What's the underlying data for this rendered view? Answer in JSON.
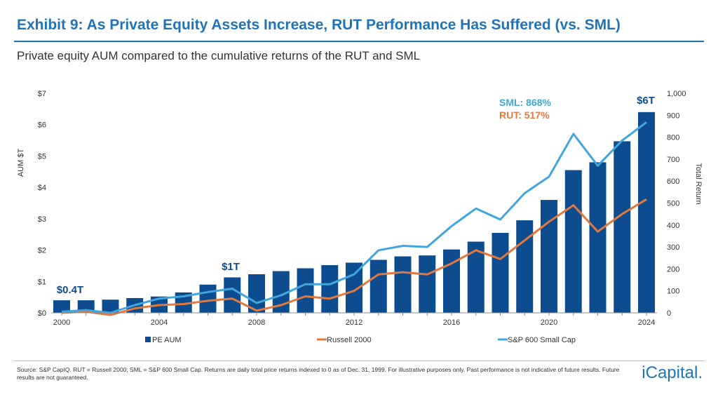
{
  "title": "Exhibit 9: As Private Equity Assets Increase, RUT Performance Has Suffered (vs. SML)",
  "subtitle": "Private equity AUM compared to the cumulative returns of the RUT and SML",
  "source": "Source: S&P CapIQ. RUT = Russell 2000; SML = S&P 600 Small Cap. Returns are daily total price returns indexed to 0 as of Dec. 31, 1999. For illustrative purposes only. Past performance is not indicative of future results. Future results are not guaranteed.",
  "logo": "iCapital.",
  "colors": {
    "title": "#1f74b8",
    "bars": "#0d4d8f",
    "russell": "#e1793e",
    "sp600": "#41a6dd"
  },
  "chart_data": {
    "type": "bar",
    "x": [
      2000,
      2001,
      2002,
      2003,
      2004,
      2005,
      2006,
      2007,
      2008,
      2009,
      2010,
      2011,
      2012,
      2013,
      2014,
      2015,
      2016,
      2017,
      2018,
      2019,
      2020,
      2021,
      2022,
      2023,
      2024
    ],
    "x_ticks": [
      2000,
      2004,
      2008,
      2012,
      2016,
      2020,
      2024
    ],
    "y_left": {
      "label": "AUM $T",
      "ticks": [
        "$0",
        "$1",
        "$2",
        "$3",
        "$4",
        "$5",
        "$6",
        "$7"
      ],
      "lim": [
        0,
        7
      ]
    },
    "y_right": {
      "label": "Total Return",
      "ticks": [
        "0",
        "100",
        "200",
        "300",
        "400",
        "500",
        "600",
        "700",
        "800",
        "900",
        "1,000"
      ],
      "lim": [
        0,
        1000
      ]
    },
    "series": [
      {
        "name": "PE AUM",
        "type": "bar",
        "axis": "left",
        "values": [
          0.4,
          0.4,
          0.42,
          0.47,
          0.52,
          0.65,
          0.9,
          1.13,
          1.23,
          1.33,
          1.42,
          1.52,
          1.6,
          1.69,
          1.8,
          1.83,
          2.02,
          2.27,
          2.55,
          2.95,
          3.6,
          4.55,
          4.8,
          5.47,
          6.4
        ]
      },
      {
        "name": "Russell 2000",
        "type": "line",
        "axis": "right",
        "values": [
          0,
          5,
          -10,
          20,
          35,
          40,
          55,
          65,
          10,
          35,
          75,
          65,
          100,
          175,
          185,
          175,
          225,
          285,
          245,
          330,
          415,
          490,
          370,
          450,
          517
        ]
      },
      {
        "name": "S&P 600 Small Cap",
        "type": "line",
        "axis": "right",
        "values": [
          5,
          12,
          0,
          35,
          65,
          75,
          95,
          110,
          45,
          80,
          130,
          130,
          175,
          285,
          305,
          300,
          395,
          475,
          425,
          545,
          620,
          815,
          670,
          785,
          868
        ]
      }
    ],
    "annotations": [
      {
        "text": "$0.4T",
        "x": 2000,
        "y": 0.4,
        "axis": "left",
        "color": "#0d4d8f"
      },
      {
        "text": "$1T",
        "x": 2007,
        "y": 1.13,
        "axis": "left",
        "color": "#0d4d8f"
      },
      {
        "text": "$6T",
        "x": 2024,
        "y": 6.4,
        "axis": "left",
        "color": "#0d4d8f"
      },
      {
        "text": "SML: 868%",
        "series": "S&P 600 Small Cap",
        "color": "#41a6dd"
      },
      {
        "text": "RUT: 517%",
        "series": "Russell 2000",
        "color": "#e1793e"
      }
    ],
    "legend": {
      "position": "bottom"
    },
    "grid": false
  }
}
